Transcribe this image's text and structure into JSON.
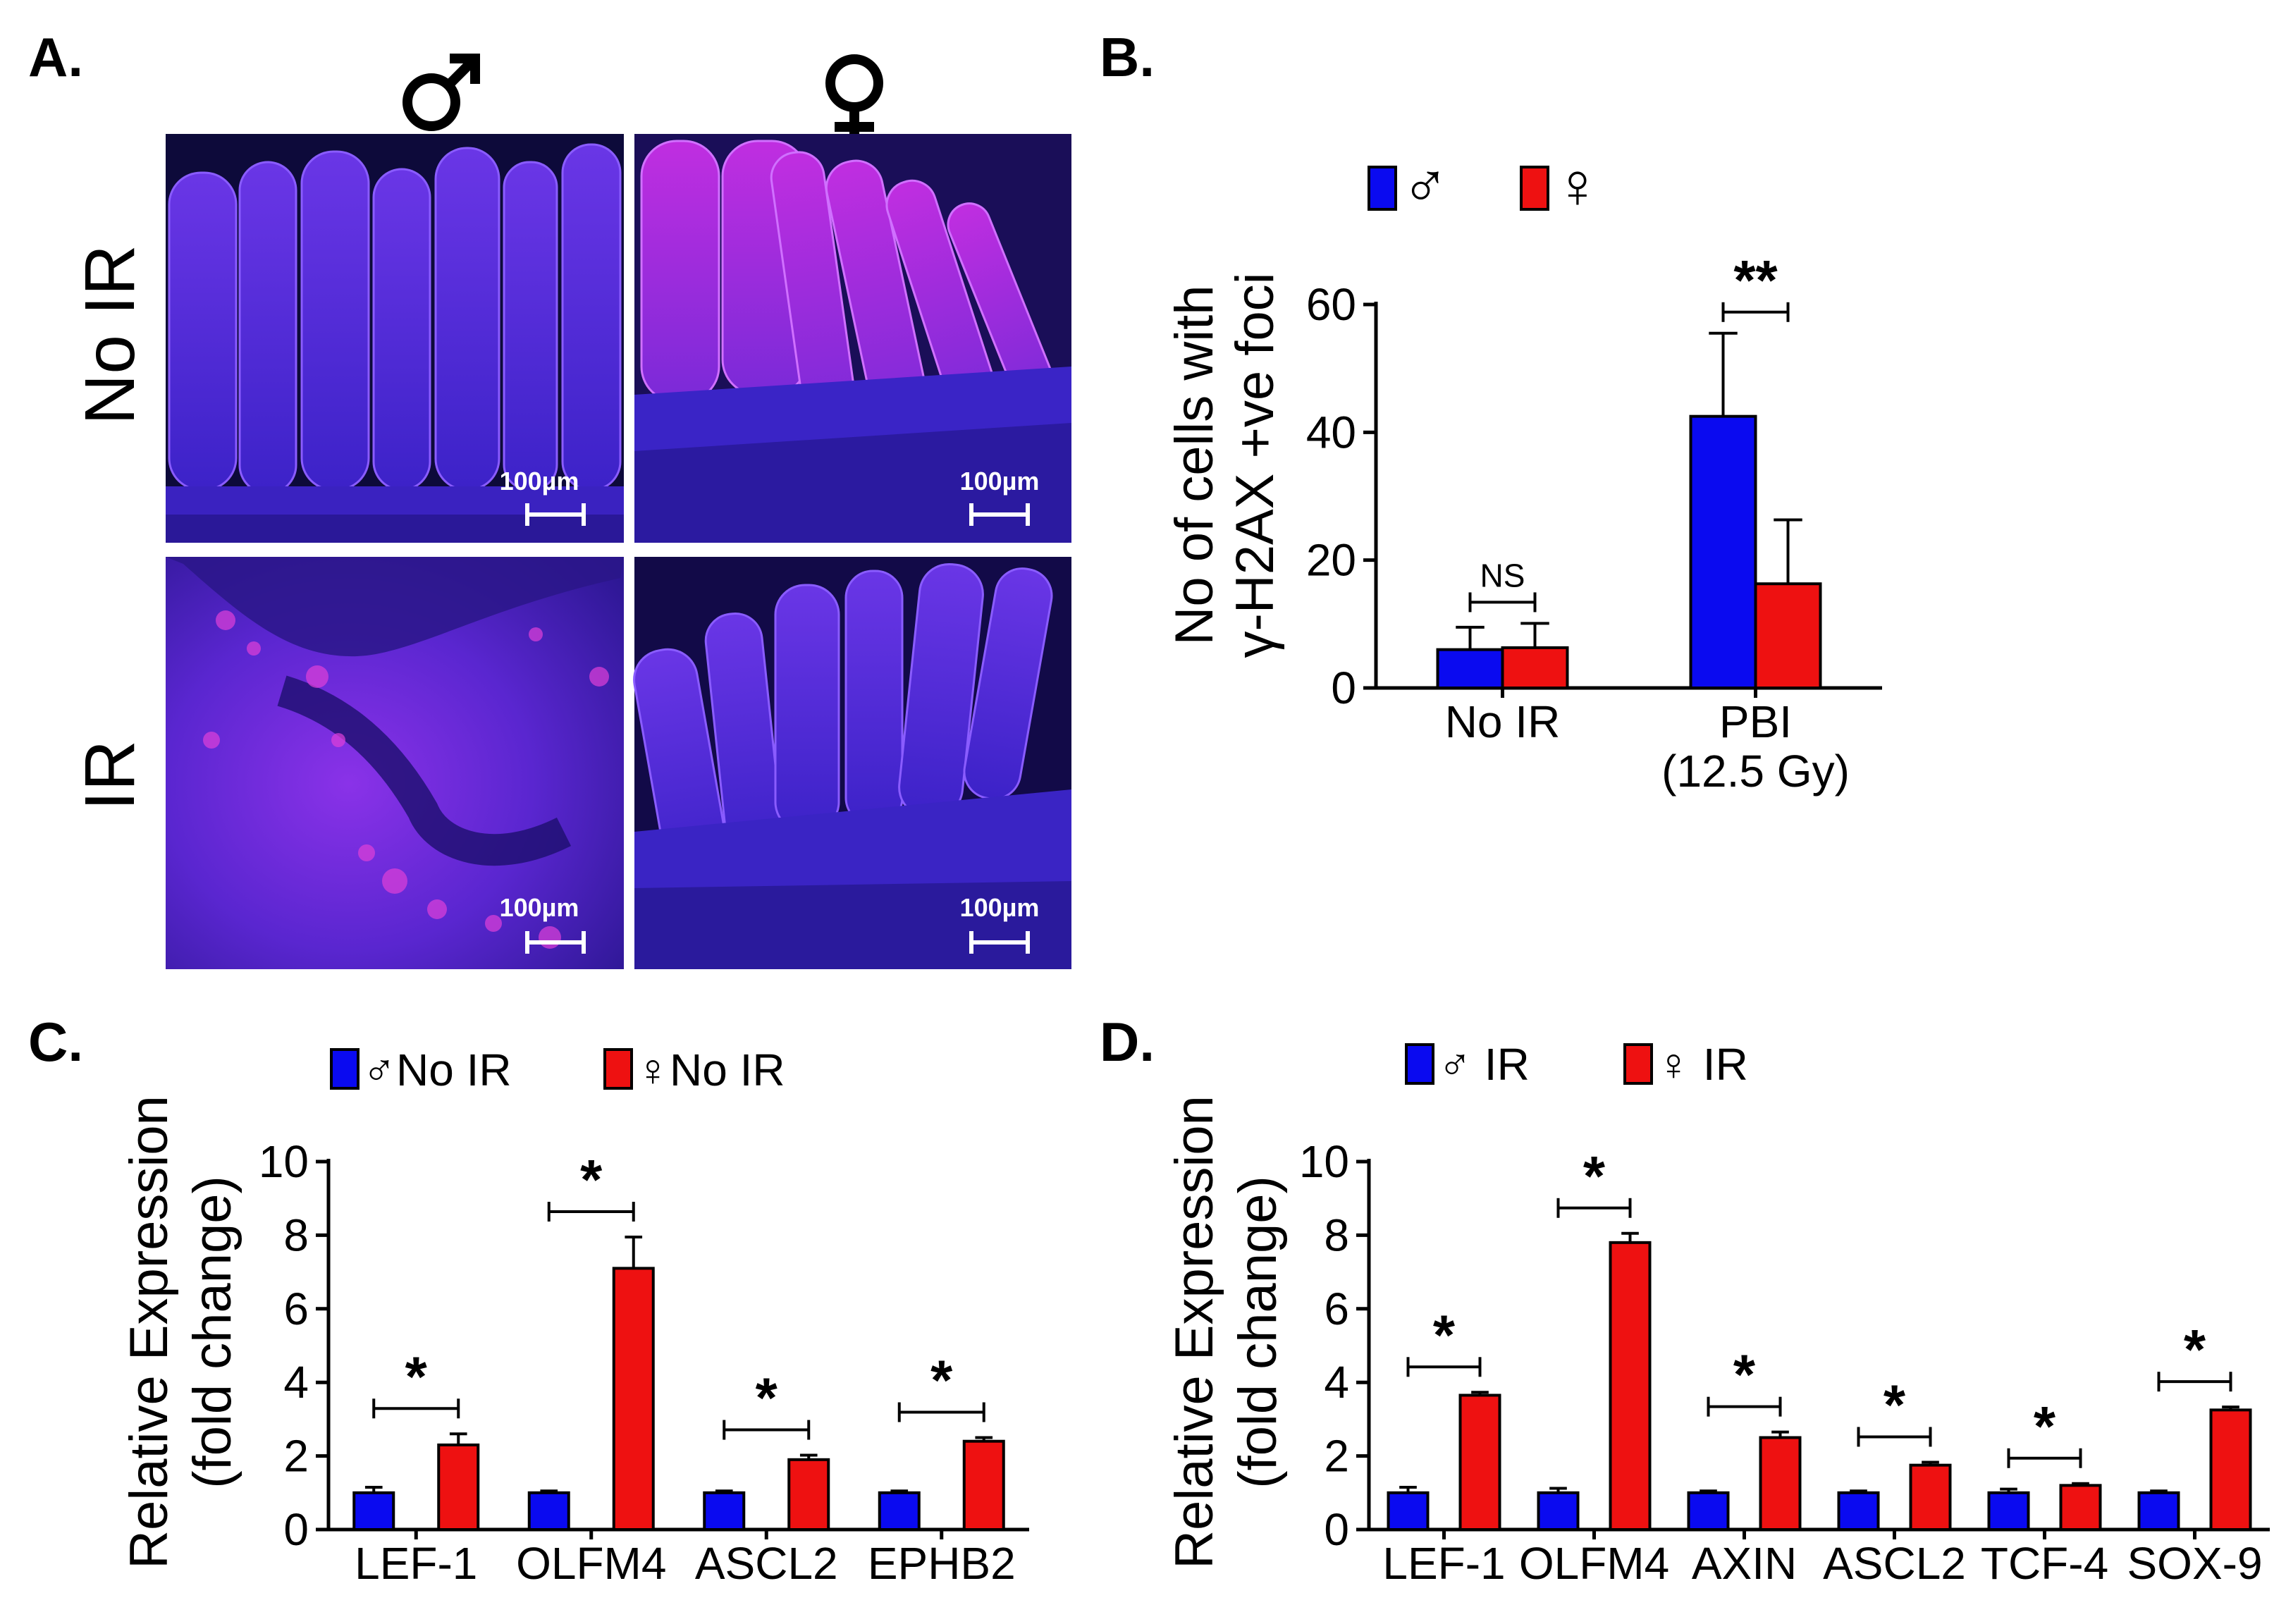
{
  "colors": {
    "male": "#0a0af0",
    "female": "#ee1111",
    "stroke": "#000000"
  },
  "panel_a": {
    "letter": "A.",
    "male_header": "♂",
    "female_header": "♀",
    "row_labels": [
      "No IR",
      "IR"
    ],
    "scale_label": "100µm"
  },
  "chart_data": [
    {
      "id": "B",
      "letter": "B.",
      "type": "bar",
      "title": "",
      "ylabel_lines": [
        "No of cells with",
        "γ-H2AX +ve foci"
      ],
      "xlabel": "",
      "ylim": [
        0,
        60
      ],
      "yticks": [
        0,
        20,
        40,
        60
      ],
      "categories": [
        "No IR",
        "PBI\n(12.5 Gy)"
      ],
      "legend": [
        "♂",
        "♀"
      ],
      "series": [
        {
          "name": "♂",
          "values": [
            6,
            42.5
          ],
          "errors": [
            3.5,
            13
          ]
        },
        {
          "name": "♀",
          "values": [
            6.3,
            16.3
          ],
          "errors": [
            3.8,
            10
          ]
        }
      ],
      "annotations": [
        "NS",
        "**"
      ]
    },
    {
      "id": "C",
      "letter": "C.",
      "type": "bar",
      "title": "",
      "ylabel_lines": [
        "Relative Expression",
        "(fold change)"
      ],
      "xlabel": "",
      "ylim": [
        0,
        10
      ],
      "yticks": [
        0,
        2,
        4,
        6,
        8,
        10
      ],
      "categories": [
        "LEF-1",
        "OLFM4",
        "ASCL2",
        "EPHB2"
      ],
      "legend": [
        "♂No IR",
        "♀No IR"
      ],
      "series": [
        {
          "name": "♂No IR",
          "values": [
            1.0,
            1.0,
            1.0,
            1.0
          ],
          "errors": [
            0.15,
            0.05,
            0.05,
            0.05
          ]
        },
        {
          "name": "♀No IR",
          "values": [
            2.3,
            7.1,
            1.9,
            2.4
          ],
          "errors": [
            0.3,
            0.85,
            0.12,
            0.1
          ]
        }
      ],
      "annotations": [
        "*",
        "*",
        "*",
        "*"
      ]
    },
    {
      "id": "D",
      "letter": "D.",
      "type": "bar",
      "title": "",
      "ylabel_lines": [
        "Relative Expression",
        "(fold change)"
      ],
      "xlabel": "",
      "ylim": [
        0,
        10
      ],
      "yticks": [
        0,
        2,
        4,
        6,
        8,
        10
      ],
      "categories": [
        "LEF-1",
        "OLFM4",
        "AXIN",
        "ASCL2",
        "TCF-4",
        "SOX-9"
      ],
      "legend": [
        "♂ IR",
        "♀ IR"
      ],
      "series": [
        {
          "name": "♂ IR",
          "values": [
            1.0,
            1.0,
            1.0,
            1.0,
            1.0,
            1.0
          ],
          "errors": [
            0.15,
            0.12,
            0.05,
            0.05,
            0.1,
            0.05
          ]
        },
        {
          "name": "♀ IR",
          "values": [
            3.65,
            7.8,
            2.5,
            1.75,
            1.2,
            3.25
          ],
          "errors": [
            0.08,
            0.25,
            0.15,
            0.08,
            0.05,
            0.08
          ]
        }
      ],
      "annotations": [
        "*",
        "*",
        "*",
        "*",
        "*",
        "*"
      ]
    }
  ]
}
